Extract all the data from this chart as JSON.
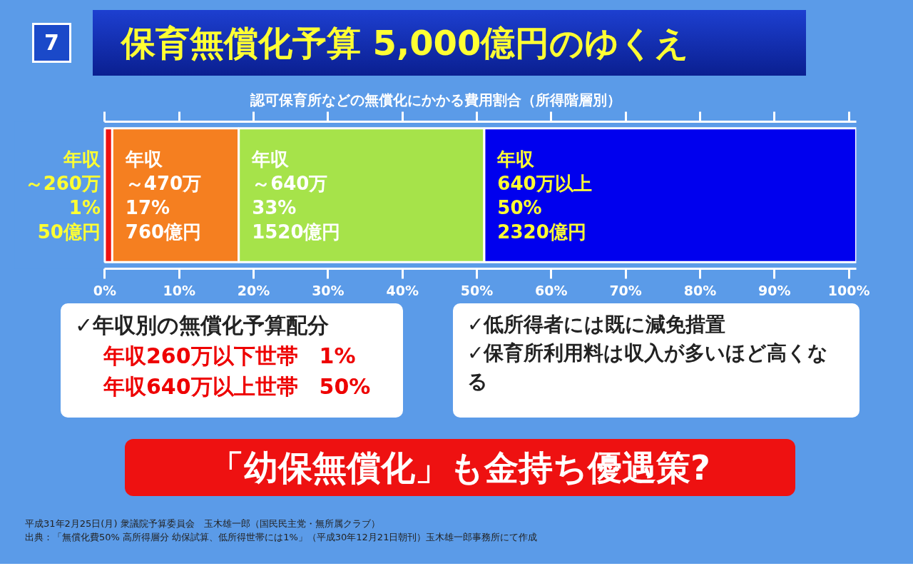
{
  "chart_data": {
    "type": "bar",
    "orientation": "horizontal",
    "stacked": true,
    "title": "保育無償化予算 5,000億円のゆくえ",
    "subtitle": "認可保育所などの無償化にかかる費用割合（所得階層別）",
    "categories": [
      null
    ],
    "series": [
      {
        "color": "#ee1111",
        "values": [
          1
        ],
        "value_labels": [
          [
            "年収",
            "～260万",
            "1%",
            "50億円"
          ]
        ]
      },
      {
        "color": "#f57f20",
        "values": [
          17
        ],
        "value_labels": [
          [
            "年収",
            "～470万",
            "17%",
            "760億円"
          ]
        ]
      },
      {
        "color": "#a6e34a",
        "values": [
          33
        ],
        "value_labels": [
          [
            "年収",
            "～640万",
            "33%",
            "1520億円"
          ]
        ]
      },
      {
        "color": "#0000ee",
        "values": [
          50
        ],
        "value_labels": [
          [
            "年収",
            "640万以上",
            "50%",
            "2320億円"
          ]
        ]
      }
    ],
    "xlim": [
      0,
      101
    ],
    "xticks": [
      {
        "value": 0,
        "label": "0%"
      },
      {
        "value": 10,
        "label": "10%"
      },
      {
        "value": 20,
        "label": "20%"
      },
      {
        "value": 30,
        "label": "30%"
      },
      {
        "value": 40,
        "label": "40%"
      },
      {
        "value": 50,
        "label": "50%"
      },
      {
        "value": 60,
        "label": "60%"
      },
      {
        "value": 70,
        "label": "70%"
      },
      {
        "value": 80,
        "label": "80%"
      },
      {
        "value": 90,
        "label": "90%"
      },
      {
        "value": 100,
        "label": "100%"
      }
    ],
    "grid": false,
    "annotations": [
      "7",
      "✓年収別の無償化予算配分",
      "年収260万以下世帯　1%",
      "年収640万以上世帯　50%",
      "✓低所得者には既に減免措置",
      "✓保育所利用料は収入が多いほど高くなる",
      "「幼保無償化」も金持ち優遇策?",
      "平成31年2月25日(月) 衆議院予算委員会　玉木雄一郎（国民民主党・無所属クラブ）",
      "出典：「無償化費50% 高所得層分 幼保試算、低所得世帯には1%」（平成30年12月21日朝刊）玉木雄一郎事務所にて作成"
    ]
  }
}
